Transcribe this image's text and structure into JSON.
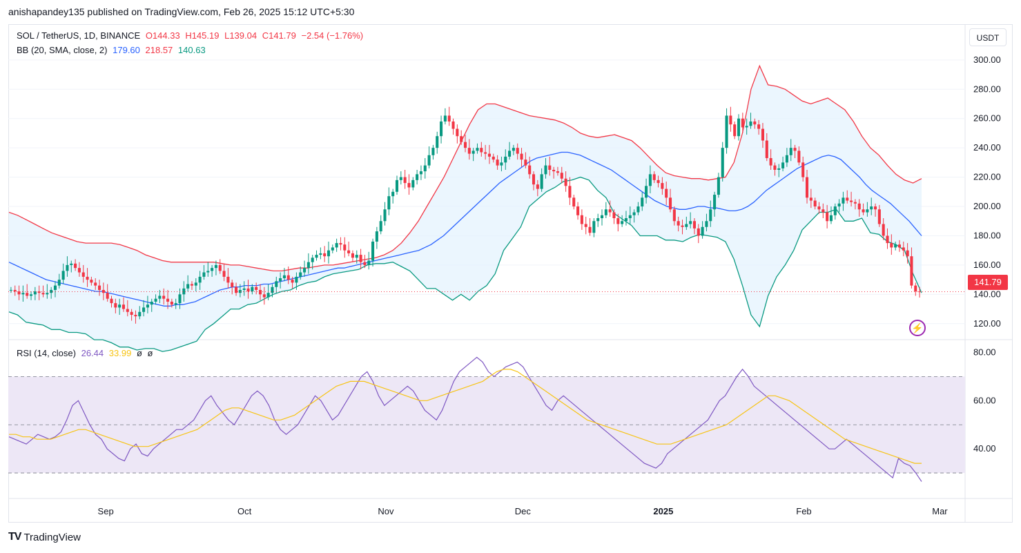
{
  "header": {
    "published": "anishapandey135 published on TradingView.com, Feb 26, 2025 15:12 UTC+5:30"
  },
  "legend": {
    "symbol": "SOL / TetherUS, 1D, BINANCE",
    "o": "O144.33",
    "h": "H145.19",
    "l": "L139.04",
    "c": "C141.79",
    "change": "−2.54 (−1.76%)",
    "bb_label": "BB (20, SMA, close, 2)",
    "bb_basis": "179.60",
    "bb_upper": "218.57",
    "bb_lower": "140.63",
    "rsi_label": "RSI (14, close)",
    "rsi_value": "26.44",
    "rsi_ma": "33.99",
    "rsi_extra1": "ø",
    "rsi_extra2": "ø"
  },
  "currency_button": "USDT",
  "last_price_label": "141.79",
  "footer": {
    "brand": "TradingView",
    "logo": "TV-logo-icon"
  },
  "colors": {
    "up": "#089981",
    "down": "#f23645",
    "bb_basis": "#2962ff",
    "bb_upper": "#f23645",
    "bb_lower": "#089981",
    "bb_fill": "#e3f2fd",
    "rsi": "#7e57c2",
    "rsi_ma": "#f7c415",
    "rsi_band": "#ede7f6"
  },
  "chart_data": [
    {
      "type": "candlestick",
      "title": "SOL / TetherUS, 1D, BINANCE",
      "x_labels": [
        "Sep",
        "Oct",
        "Nov",
        "Dec",
        "2025",
        "Feb",
        "Mar"
      ],
      "y_ticks": [
        120,
        140,
        160,
        180,
        200,
        220,
        240,
        260,
        280,
        300
      ],
      "y_range": [
        110,
        307
      ],
      "last_price": 141.79,
      "close_series": [
        143,
        142,
        140,
        141,
        139,
        140,
        142,
        141,
        140,
        141,
        143,
        146,
        150,
        156,
        160,
        161,
        158,
        155,
        152,
        150,
        148,
        146,
        143,
        141,
        137,
        134,
        131,
        133,
        130,
        128,
        126,
        125,
        128,
        131,
        133,
        135,
        137,
        139,
        137,
        135,
        133,
        134,
        140,
        144,
        147,
        146,
        148,
        152,
        155,
        156,
        158,
        160,
        156,
        152,
        148,
        145,
        141,
        143,
        144,
        142,
        145,
        143,
        140,
        138,
        141,
        145,
        149,
        151,
        153,
        150,
        148,
        152,
        155,
        158,
        162,
        165,
        167,
        168,
        166,
        170,
        172,
        175,
        174,
        170,
        168,
        165,
        167,
        162,
        160,
        163,
        176,
        183,
        190,
        198,
        207,
        210,
        218,
        220,
        216,
        213,
        218,
        222,
        224,
        228,
        235,
        240,
        248,
        258,
        262,
        258,
        253,
        248,
        244,
        240,
        236,
        238,
        240,
        237,
        236,
        234,
        232,
        228,
        230,
        234,
        238,
        240,
        236,
        232,
        228,
        222,
        215,
        212,
        222,
        228,
        225,
        224,
        223,
        219,
        214,
        206,
        200,
        194,
        188,
        186,
        182,
        190,
        192,
        194,
        198,
        196,
        192,
        188,
        190,
        192,
        194,
        196,
        200,
        206,
        214,
        222,
        218,
        216,
        212,
        206,
        198,
        190,
        187,
        186,
        188,
        190,
        185,
        180,
        186,
        190,
        198,
        208,
        220,
        240,
        262,
        256,
        248,
        260,
        254,
        255,
        258,
        256,
        253,
        245,
        233,
        228,
        225,
        226,
        230,
        235,
        240,
        238,
        230,
        220,
        206,
        204,
        200,
        198,
        196,
        190,
        194,
        200,
        202,
        206,
        204,
        203,
        202,
        198,
        196,
        198,
        200,
        198,
        188,
        180,
        175,
        172,
        174,
        172,
        170,
        166,
        146,
        142,
        141.79
      ],
      "bb_basis": [
        162,
        160,
        158,
        156,
        154,
        152,
        150,
        149,
        148,
        147,
        146,
        145,
        144,
        143,
        142,
        142,
        141,
        140,
        139,
        138,
        137,
        136,
        135,
        134,
        133,
        132,
        132,
        133,
        133,
        134,
        135,
        137,
        139,
        141,
        143,
        144,
        145,
        145,
        146,
        146,
        146,
        147,
        147,
        148,
        149,
        150,
        151,
        152,
        153,
        154,
        155,
        156,
        157,
        158,
        158,
        159,
        160,
        161,
        162,
        163,
        164,
        165,
        166,
        167,
        168,
        169,
        170,
        172,
        174,
        177,
        180,
        184,
        188,
        192,
        196,
        200,
        204,
        208,
        212,
        216,
        219,
        222,
        225,
        228,
        231,
        233,
        234,
        235,
        236,
        237,
        237,
        236,
        235,
        233,
        231,
        229,
        227,
        225,
        222,
        219,
        216,
        213,
        210,
        207,
        204,
        202,
        200,
        199,
        198,
        198,
        199,
        200,
        200,
        199,
        199,
        198,
        197,
        197,
        198,
        200,
        203,
        207,
        211,
        214,
        217,
        220,
        223,
        226,
        228,
        230,
        232,
        234,
        235,
        234,
        232,
        228,
        224,
        220,
        215,
        211,
        208,
        205,
        202,
        198,
        194,
        190,
        185,
        180
      ],
      "bb_upper": [
        196,
        194,
        191,
        188,
        185,
        182,
        180,
        178,
        176,
        175,
        175,
        175,
        175,
        174,
        172,
        170,
        167,
        165,
        163,
        162,
        162,
        162,
        162,
        162,
        162,
        161,
        160,
        160,
        159,
        158,
        157,
        156,
        156,
        157,
        158,
        158,
        159,
        160,
        160,
        161,
        162,
        163,
        164,
        165,
        167,
        170,
        175,
        182,
        190,
        200,
        210,
        220,
        232,
        244,
        256,
        266,
        270,
        270,
        268,
        266,
        264,
        262,
        261,
        260,
        259,
        257,
        254,
        250,
        248,
        247,
        248,
        249,
        247,
        245,
        240,
        234,
        228,
        223,
        221,
        220,
        219,
        219,
        218,
        219,
        220,
        230,
        250,
        280,
        296,
        283,
        282,
        280,
        276,
        272,
        270,
        272,
        274,
        270,
        266,
        258,
        248,
        240,
        235,
        228,
        222,
        218,
        216,
        219
      ]
    },
    {
      "type": "line",
      "title": "RSI (14, close)",
      "y_ticks": [
        40,
        60,
        80
      ],
      "bands": [
        30,
        50,
        70
      ],
      "y_range": [
        20,
        83
      ],
      "series": [
        {
          "name": "RSI",
          "values": [
            45,
            44,
            43,
            42,
            44,
            46,
            45,
            44,
            45,
            47,
            52,
            58,
            60,
            55,
            50,
            46,
            44,
            40,
            38,
            36,
            35,
            40,
            42,
            38,
            37,
            40,
            42,
            44,
            46,
            48,
            48,
            50,
            52,
            56,
            60,
            62,
            58,
            55,
            52,
            50,
            54,
            58,
            62,
            64,
            62,
            58,
            52,
            48,
            46,
            48,
            50,
            54,
            58,
            62,
            60,
            56,
            52,
            54,
            58,
            62,
            66,
            70,
            72,
            68,
            62,
            58,
            60,
            62,
            64,
            66,
            64,
            60,
            56,
            54,
            52,
            56,
            62,
            68,
            72,
            74,
            76,
            78,
            76,
            72,
            70,
            72,
            74,
            75,
            76,
            74,
            70,
            66,
            62,
            58,
            56,
            60,
            62,
            60,
            58,
            56,
            54,
            52,
            50,
            48,
            46,
            44,
            42,
            40,
            38,
            36,
            34,
            33,
            32,
            34,
            38,
            40,
            42,
            44,
            46,
            48,
            50,
            52,
            56,
            60,
            62,
            66,
            70,
            73,
            70,
            66,
            64,
            62,
            60,
            58,
            56,
            54,
            52,
            50,
            48,
            46,
            44,
            42,
            40,
            40,
            42,
            44,
            42,
            40,
            38,
            36,
            34,
            32,
            30,
            28,
            36,
            34,
            33,
            30,
            26.44
          ]
        },
        {
          "name": "RSI MA",
          "values": [
            46,
            46,
            45,
            45,
            44,
            44,
            44,
            45,
            46,
            47,
            48,
            48,
            47,
            46,
            45,
            44,
            43,
            42,
            41,
            41,
            41,
            42,
            43,
            44,
            45,
            46,
            47,
            48,
            50,
            52,
            54,
            56,
            57,
            57,
            56,
            55,
            54,
            53,
            52,
            52,
            53,
            54,
            56,
            58,
            60,
            62,
            64,
            66,
            67,
            68,
            68,
            68,
            67,
            66,
            65,
            64,
            63,
            62,
            61,
            60,
            60,
            61,
            62,
            63,
            64,
            65,
            66,
            67,
            68,
            70,
            72,
            73,
            73,
            72,
            70,
            68,
            66,
            64,
            62,
            60,
            58,
            56,
            54,
            52,
            51,
            50,
            49,
            48,
            47,
            46,
            45,
            44,
            43,
            42,
            42,
            42,
            43,
            44,
            45,
            46,
            47,
            48,
            49,
            50,
            52,
            54,
            56,
            58,
            60,
            62,
            62,
            61,
            60,
            58,
            56,
            54,
            52,
            50,
            48,
            46,
            44,
            43,
            42,
            41,
            40,
            39,
            38,
            37,
            36,
            35,
            34,
            33.99
          ]
        }
      ]
    }
  ]
}
